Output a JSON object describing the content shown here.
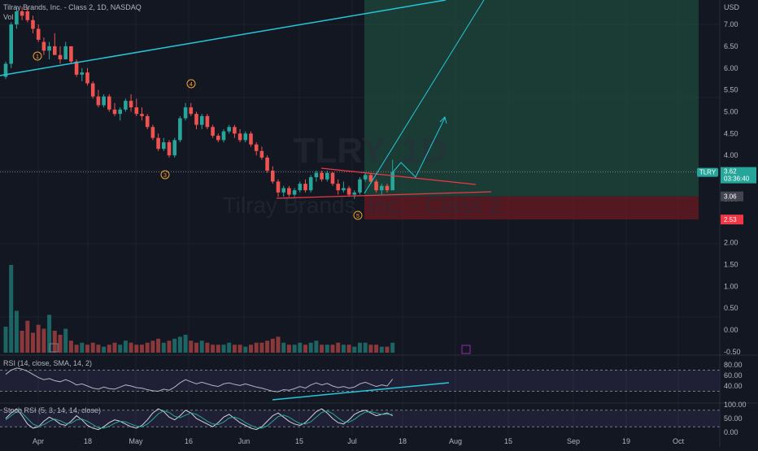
{
  "header": {
    "symbol_title": "Tilray Brands, Inc. - Class 2, 1D, NASDAQ",
    "vol_label": "Vol",
    "watermark_line1": "TLRY, 1D",
    "watermark_line2": "Tilray Brands, Inc. - Class 2"
  },
  "price_axis": {
    "currency": "USD",
    "ticks": [
      "7.00",
      "6.50",
      "6.00",
      "5.50",
      "5.00",
      "4.50",
      "4.00",
      "3.50",
      "3.00",
      "2.50",
      "2.00",
      "1.50",
      "1.00",
      "0.50",
      "0.00",
      "-0.50"
    ]
  },
  "price_tags": {
    "symbol": "TLRY",
    "last_price": "3.62",
    "countdown": "03:36:40",
    "target_price": "3.06",
    "stop_price": "2.53"
  },
  "time_axis": {
    "labels": [
      "Apr",
      "18",
      "May",
      "16",
      "Jun",
      "15",
      "Jul",
      "18",
      "Aug",
      "15",
      "Sep",
      "19",
      "Oct"
    ]
  },
  "wave_labels": [
    "1",
    "3",
    "4",
    "5"
  ],
  "rsi": {
    "title": "RSI (14, close, SMA, 14, 2)",
    "ticks": [
      "80.00",
      "60.00",
      "40.00"
    ]
  },
  "stoch": {
    "title": "Stoch RSI (5, 3, 14, 14, close)",
    "ticks": [
      "100.00",
      "50.00",
      "0.00"
    ]
  },
  "colors": {
    "background": "#131722",
    "up": "#26a69a",
    "down": "#ef5350",
    "trendline": "#26c6da",
    "triangle": "#f23645",
    "target_zone": "#1e4a3c",
    "stop_zone": "#6b1a22",
    "rsi_line": "#b2b5be",
    "stoch_k": "#d1d4dc",
    "stoch_d": "#26a69a"
  },
  "chart_data": {
    "type": "candlestick",
    "title": "Tilray Brands, Inc. - Class 2, 1D, NASDAQ",
    "ylabel": "USD",
    "ylim": [
      -0.5,
      7.4
    ],
    "candles": [
      [
        5.8,
        6.15,
        5.75,
        6.1
      ],
      [
        6.1,
        7.05,
        6.0,
        7.0
      ],
      [
        7.0,
        7.4,
        6.9,
        7.3
      ],
      [
        7.3,
        7.4,
        7.1,
        7.2
      ],
      [
        7.3,
        7.4,
        7.05,
        7.1
      ],
      [
        7.1,
        7.2,
        6.8,
        6.9
      ],
      [
        6.9,
        7.0,
        6.6,
        6.65
      ],
      [
        6.6,
        6.7,
        6.3,
        6.4
      ],
      [
        6.4,
        6.6,
        6.2,
        6.5
      ],
      [
        6.5,
        6.8,
        6.3,
        6.3
      ],
      [
        6.3,
        6.5,
        6.1,
        6.2
      ],
      [
        6.2,
        6.6,
        6.2,
        6.5
      ],
      [
        6.5,
        6.5,
        6.1,
        6.15
      ],
      [
        6.15,
        6.2,
        5.8,
        5.85
      ],
      [
        5.85,
        6.0,
        5.7,
        5.9
      ],
      [
        5.9,
        6.0,
        5.6,
        5.65
      ],
      [
        5.65,
        5.7,
        5.3,
        5.35
      ],
      [
        5.35,
        5.5,
        5.1,
        5.15
      ],
      [
        5.15,
        5.4,
        5.1,
        5.35
      ],
      [
        5.35,
        5.4,
        5.0,
        5.05
      ],
      [
        5.05,
        5.2,
        4.9,
        4.95
      ],
      [
        4.95,
        5.1,
        4.8,
        5.05
      ],
      [
        5.05,
        5.3,
        5.0,
        5.25
      ],
      [
        5.25,
        5.4,
        5.0,
        5.1
      ],
      [
        5.1,
        5.3,
        4.9,
        4.95
      ],
      [
        4.95,
        5.1,
        4.8,
        4.9
      ],
      [
        4.9,
        4.95,
        4.6,
        4.65
      ],
      [
        4.65,
        4.7,
        4.35,
        4.4
      ],
      [
        4.4,
        4.5,
        4.1,
        4.15
      ],
      [
        4.15,
        4.4,
        4.1,
        4.3
      ],
      [
        4.3,
        4.35,
        3.95,
        4.0
      ],
      [
        4.0,
        4.4,
        3.95,
        4.35
      ],
      [
        4.35,
        4.9,
        4.3,
        4.85
      ],
      [
        4.85,
        5.2,
        4.8,
        5.1
      ],
      [
        5.1,
        5.2,
        4.9,
        4.95
      ],
      [
        4.95,
        5.0,
        4.6,
        4.7
      ],
      [
        4.7,
        4.95,
        4.6,
        4.9
      ],
      [
        4.9,
        4.95,
        4.6,
        4.65
      ],
      [
        4.65,
        4.7,
        4.4,
        4.45
      ],
      [
        4.45,
        4.5,
        4.3,
        4.35
      ],
      [
        4.35,
        4.6,
        4.3,
        4.55
      ],
      [
        4.55,
        4.7,
        4.5,
        4.65
      ],
      [
        4.65,
        4.7,
        4.4,
        4.5
      ],
      [
        4.5,
        4.6,
        4.3,
        4.35
      ],
      [
        4.35,
        4.55,
        4.3,
        4.5
      ],
      [
        4.5,
        4.55,
        4.2,
        4.25
      ],
      [
        4.25,
        4.3,
        4.0,
        4.1
      ],
      [
        4.1,
        4.2,
        3.9,
        3.95
      ],
      [
        3.95,
        4.0,
        3.6,
        3.65
      ],
      [
        3.65,
        3.75,
        3.35,
        3.4
      ],
      [
        3.4,
        3.45,
        3.05,
        3.15
      ],
      [
        3.15,
        3.3,
        3.05,
        3.25
      ],
      [
        3.25,
        3.3,
        3.05,
        3.1
      ],
      [
        3.1,
        3.25,
        3.05,
        3.2
      ],
      [
        3.2,
        3.4,
        3.15,
        3.35
      ],
      [
        3.35,
        3.45,
        3.15,
        3.2
      ],
      [
        3.2,
        3.55,
        3.15,
        3.5
      ],
      [
        3.5,
        3.65,
        3.4,
        3.6
      ],
      [
        3.6,
        3.65,
        3.4,
        3.45
      ],
      [
        3.45,
        3.65,
        3.4,
        3.6
      ],
      [
        3.6,
        3.62,
        3.3,
        3.35
      ],
      [
        3.35,
        3.45,
        3.1,
        3.2
      ],
      [
        3.2,
        3.4,
        3.15,
        3.25
      ],
      [
        3.25,
        3.3,
        3.05,
        3.1
      ],
      [
        3.1,
        3.2,
        3.0,
        3.15
      ],
      [
        3.15,
        3.5,
        3.1,
        3.45
      ],
      [
        3.45,
        3.6,
        3.4,
        3.55
      ],
      [
        3.55,
        3.6,
        3.35,
        3.4
      ],
      [
        3.4,
        3.45,
        3.15,
        3.2
      ],
      [
        3.2,
        3.35,
        3.1,
        3.3
      ],
      [
        3.3,
        3.35,
        3.15,
        3.2
      ],
      [
        3.2,
        3.9,
        3.2,
        3.62
      ]
    ],
    "volume": [
      1.3,
      4.4,
      2.1,
      1.1,
      1.6,
      1.0,
      1.4,
      1.2,
      1.9,
      1.1,
      0.9,
      1.2,
      0.6,
      0.4,
      0.5,
      0.4,
      0.5,
      0.4,
      0.3,
      0.4,
      0.5,
      0.4,
      0.6,
      0.5,
      0.4,
      0.4,
      0.5,
      0.6,
      0.7,
      0.5,
      0.6,
      0.7,
      0.8,
      0.9,
      0.6,
      0.5,
      0.6,
      0.5,
      0.4,
      0.4,
      0.4,
      0.5,
      0.4,
      0.4,
      0.3,
      0.4,
      0.5,
      0.5,
      0.6,
      0.7,
      0.8,
      0.5,
      0.4,
      0.4,
      0.5,
      0.4,
      0.5,
      0.6,
      0.4,
      0.4,
      0.4,
      0.5,
      0.4,
      0.4,
      0.3,
      0.5,
      0.5,
      0.4,
      0.4,
      0.3,
      0.3,
      0.5
    ],
    "rsi": [
      62,
      70,
      74,
      72,
      68,
      62,
      56,
      52,
      54,
      50,
      48,
      52,
      48,
      42,
      44,
      40,
      36,
      34,
      38,
      35,
      34,
      38,
      42,
      40,
      37,
      36,
      33,
      31,
      30,
      34,
      32,
      38,
      46,
      52,
      48,
      44,
      47,
      44,
      41,
      39,
      44,
      46,
      43,
      41,
      44,
      41,
      38,
      36,
      33,
      30,
      29,
      33,
      32,
      35,
      39,
      36,
      42,
      46,
      42,
      45,
      40,
      37,
      39,
      36,
      38,
      44,
      47,
      43,
      39,
      42,
      40,
      53
    ],
    "stoch_k": [
      50,
      70,
      85,
      60,
      30,
      15,
      20,
      40,
      55,
      45,
      30,
      25,
      40,
      60,
      45,
      25,
      15,
      10,
      20,
      35,
      45,
      40,
      30,
      20,
      15,
      25,
      45,
      70,
      85,
      75,
      55,
      45,
      60,
      80,
      70,
      50,
      40,
      30,
      20,
      35,
      55,
      65,
      50,
      35,
      25,
      15,
      10,
      20,
      40,
      60,
      70,
      55,
      40,
      30,
      25,
      35,
      55,
      75,
      85,
      70,
      50,
      35,
      30,
      45,
      65,
      75,
      80,
      70,
      60,
      65,
      70,
      60
    ],
    "stoch_d": [
      45,
      60,
      75,
      70,
      50,
      30,
      22,
      28,
      40,
      48,
      42,
      32,
      33,
      45,
      48,
      40,
      28,
      16,
      15,
      22,
      33,
      40,
      38,
      30,
      22,
      20,
      30,
      47,
      67,
      78,
      72,
      58,
      53,
      62,
      70,
      65,
      53,
      40,
      30,
      28,
      37,
      52,
      55,
      48,
      35,
      25,
      17,
      15,
      23,
      40,
      57,
      62,
      55,
      42,
      32,
      30,
      38,
      55,
      72,
      77,
      68,
      52,
      38,
      37,
      47,
      62,
      73,
      75,
      70,
      65,
      65,
      65
    ]
  }
}
